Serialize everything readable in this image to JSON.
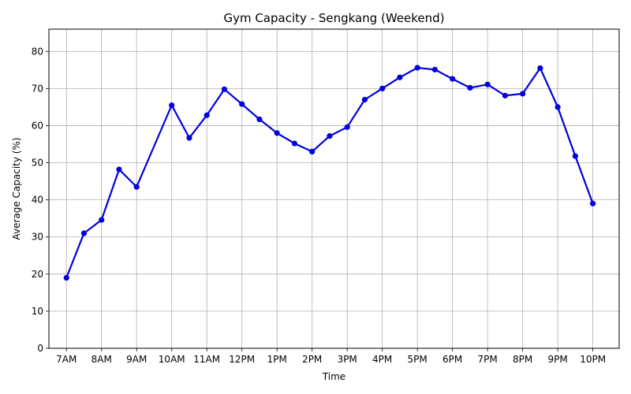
{
  "chart_data": {
    "type": "line",
    "title": "Gym Capacity - Sengkang (Weekend)",
    "xlabel": "Time",
    "ylabel": "Average Capacity (%)",
    "ylim": [
      0,
      86
    ],
    "yticks": [
      0,
      10,
      20,
      30,
      40,
      50,
      60,
      70,
      80
    ],
    "xticks": [
      "7AM",
      "8AM",
      "9AM",
      "10AM",
      "11AM",
      "12PM",
      "1PM",
      "2PM",
      "3PM",
      "4PM",
      "5PM",
      "6PM",
      "7PM",
      "8PM",
      "9PM",
      "10PM"
    ],
    "grid": true,
    "legend": "none",
    "series": [
      {
        "color": "#0000dd",
        "x": [
          7,
          7.5,
          8,
          8.5,
          9,
          10,
          10.5,
          11,
          11.5,
          12,
          12.5,
          13,
          13.5,
          14,
          14.5,
          15,
          15.5,
          16,
          16.5,
          17,
          17.5,
          18,
          18.5,
          19,
          19.5,
          20,
          20.5,
          21,
          21.5,
          22
        ],
        "values": [
          19,
          31,
          34.6,
          48.2,
          43.5,
          65.5,
          56.7,
          62.8,
          69.8,
          65.8,
          61.7,
          58,
          55.2,
          53,
          57.2,
          59.6,
          67,
          70,
          73,
          75.6,
          75.1,
          72.6,
          70.2,
          71.1,
          68.1,
          68.6,
          75.5,
          65,
          51.8,
          39
        ]
      }
    ]
  }
}
